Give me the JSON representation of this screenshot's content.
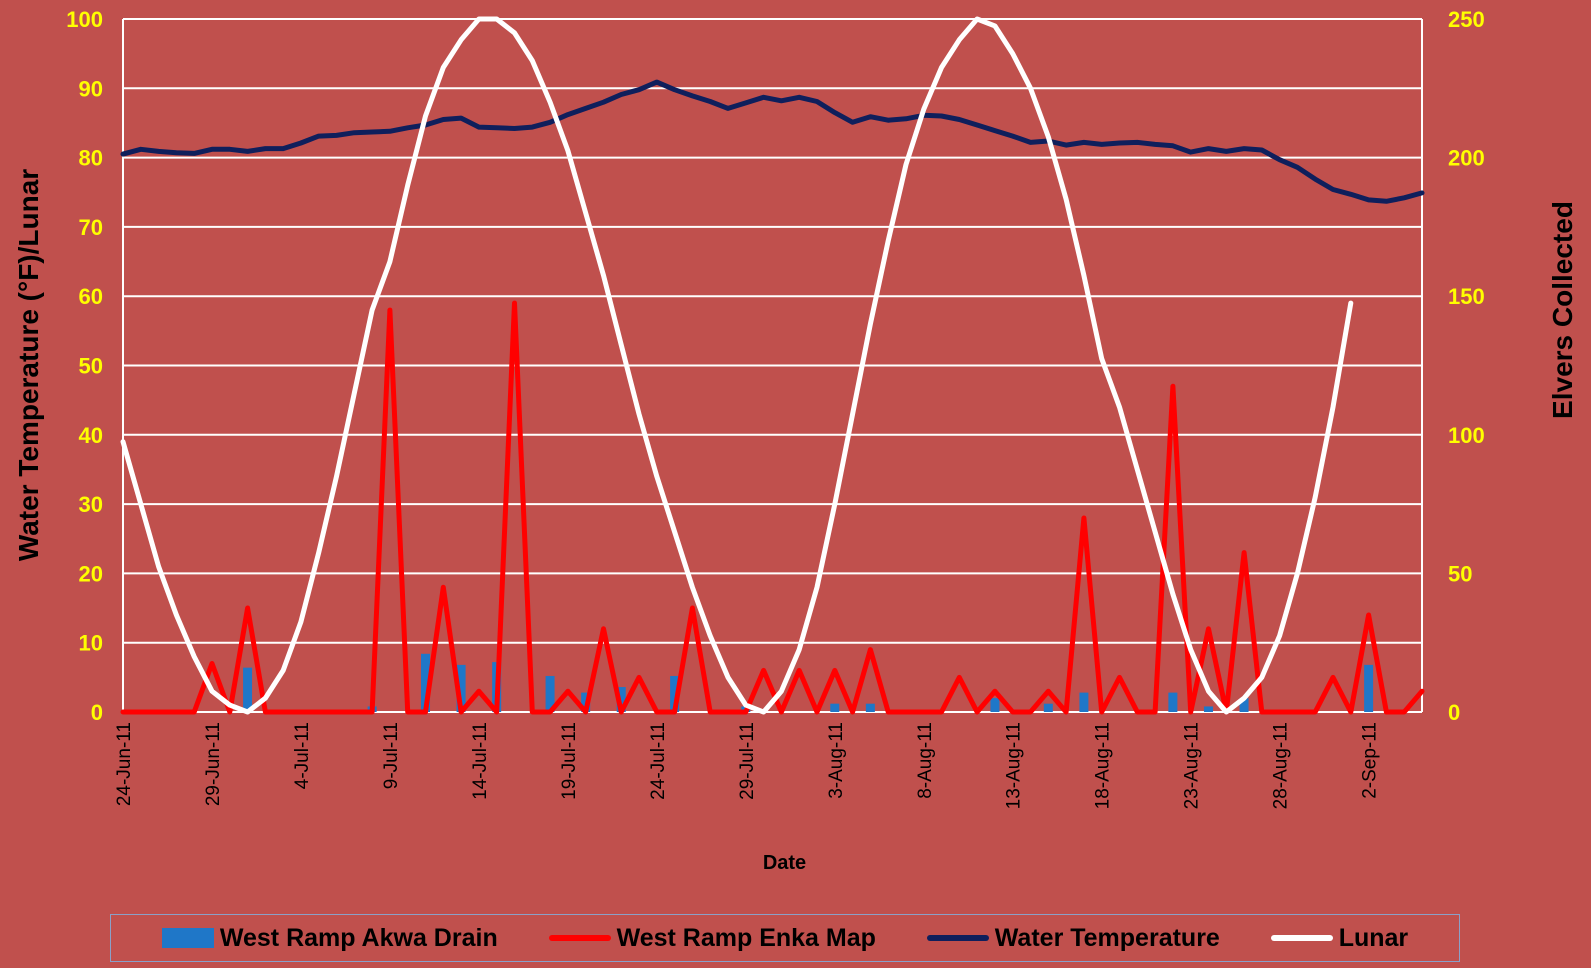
{
  "chart_data": {
    "type": "line",
    "x_labels": [
      "24-Jun-11",
      "29-Jun-11",
      "4-Jul-11",
      "9-Jul-11",
      "14-Jul-11",
      "19-Jul-11",
      "24-Jul-11",
      "29-Jul-11",
      "3-Aug-11",
      "8-Aug-11",
      "13-Aug-11",
      "18-Aug-11",
      "23-Aug-11",
      "28-Aug-11",
      "2-Sep-11"
    ],
    "xlabel": "Date",
    "ylabel_left": "Water Temperature (°F)/Lunar",
    "ylabel_right": "Elvers Collected",
    "y_left_ticks": [
      "0",
      "10",
      "20",
      "30",
      "40",
      "50",
      "60",
      "70",
      "80",
      "90",
      "100"
    ],
    "y_right_ticks": [
      "0",
      "50",
      "100",
      "150",
      "200",
      "250"
    ],
    "ylim_left": [
      0,
      100
    ],
    "ylim_right": [
      0,
      250
    ],
    "grid": true,
    "legend_position": "bottom",
    "colors": {
      "background": "#c0504d",
      "tick_labels": "#ffff00",
      "akwa": "#1f77c8",
      "enka": "#ff0000",
      "water": "#0f1f5c",
      "lunar": "#ffffff",
      "grid": "#ffffff"
    },
    "series": [
      {
        "name": "West Ramp Akwa Drain",
        "type": "bar",
        "axis": "right",
        "color": "#1f77c8",
        "points": [
          [
            7,
            16
          ],
          [
            14,
            2
          ],
          [
            17,
            21
          ],
          [
            19,
            17
          ],
          [
            21,
            18
          ],
          [
            24,
            13
          ],
          [
            26,
            7
          ],
          [
            28,
            9
          ],
          [
            31,
            13
          ],
          [
            35,
            2
          ],
          [
            40,
            3
          ],
          [
            42,
            3
          ],
          [
            49,
            5
          ],
          [
            52,
            3
          ],
          [
            54,
            7
          ],
          [
            59,
            7
          ],
          [
            61,
            2
          ],
          [
            63,
            5
          ],
          [
            70,
            17
          ]
        ]
      },
      {
        "name": "West Ramp Enka Map",
        "type": "line",
        "axis": "right",
        "color": "#ff0000",
        "values": [
          0,
          0,
          0,
          0,
          0,
          17.5,
          0,
          37.5,
          0,
          0,
          0,
          0,
          0,
          0,
          0,
          145,
          0,
          0,
          45,
          0,
          7.5,
          0,
          147.5,
          0,
          0,
          7.5,
          0,
          30,
          0,
          12.5,
          0,
          0,
          37.5,
          0,
          0,
          0,
          15,
          0,
          15,
          0,
          15,
          0,
          22.5,
          0,
          0,
          0,
          0,
          12.5,
          0,
          7.5,
          0,
          0,
          7.5,
          0,
          70,
          0,
          12.5,
          0,
          0,
          117.5,
          0,
          30,
          0,
          57.5,
          0,
          0,
          0,
          0,
          12.5,
          0,
          35,
          0,
          0,
          7.5
        ]
      },
      {
        "name": "Water Temperature",
        "type": "line",
        "axis": "left",
        "color": "#0f1f5c",
        "values": [
          80.5,
          81.2,
          80.9,
          80.7,
          80.6,
          81.2,
          81.2,
          80.9,
          81.3,
          81.3,
          82.1,
          83.1,
          83.2,
          83.6,
          83.7,
          83.8,
          84.3,
          84.7,
          85.5,
          85.7,
          84.4,
          84.3,
          84.2,
          84.4,
          85.1,
          86.2,
          87.1,
          88,
          89.1,
          89.8,
          90.9,
          89.8,
          88.9,
          88.1,
          87.1,
          87.9,
          88.7,
          88.2,
          88.7,
          88.1,
          86.5,
          85.1,
          85.9,
          85.4,
          85.6,
          86.1,
          86,
          85.5,
          84.7,
          83.9,
          83.1,
          82.2,
          82.4,
          81.8,
          82.2,
          81.9,
          82.1,
          82.2,
          81.9,
          81.7,
          80.8,
          81.3,
          80.9,
          81.3,
          81.1,
          79.7,
          78.6,
          76.9,
          75.4,
          74.7,
          73.9,
          73.7,
          74.2,
          74.9
        ]
      },
      {
        "name": "Lunar",
        "type": "line",
        "axis": "left",
        "color": "#ffffff",
        "values": [
          39,
          30,
          21,
          14,
          8,
          3,
          1,
          0,
          2,
          6,
          13,
          23,
          34,
          46,
          58,
          65,
          76,
          86,
          93,
          97,
          100,
          100,
          98,
          94,
          88,
          81,
          72,
          63,
          53,
          43,
          34,
          26,
          18,
          11,
          5,
          1,
          0,
          3,
          9,
          18,
          30,
          43,
          56,
          68,
          79,
          87,
          93,
          97,
          100,
          99,
          95,
          90,
          83,
          74,
          63,
          51,
          44,
          35,
          26,
          17,
          9,
          3,
          0,
          2,
          5,
          11,
          20,
          31,
          44,
          59
        ]
      }
    ]
  }
}
